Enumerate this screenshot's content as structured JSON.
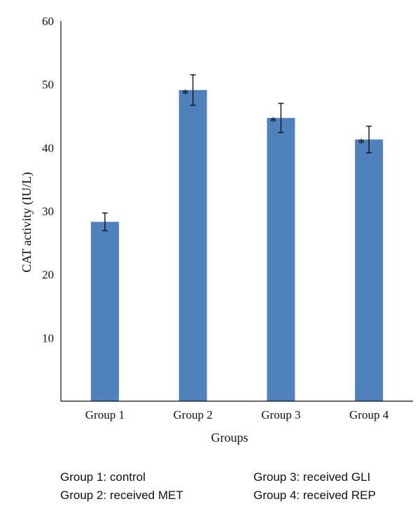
{
  "chart_data": {
    "type": "bar",
    "categories": [
      "Group 1",
      "Group 2",
      "Group 3",
      "Group 4"
    ],
    "values": [
      28.3,
      49.1,
      44.7,
      41.3
    ],
    "errors": [
      1.4,
      2.4,
      2.3,
      2.1
    ],
    "significance": [
      "",
      "*",
      "*",
      "*"
    ],
    "xlabel": "Groups",
    "ylabel": "CAT activity (IU/L)",
    "ylim": [
      0,
      60
    ],
    "yticks": [
      10,
      20,
      30,
      40,
      50,
      60
    ],
    "grid": false,
    "bar_color": "#4f81bd"
  },
  "legend": {
    "left": [
      "Group 1: control",
      "Group 2: received MET"
    ],
    "right": [
      "Group 3: received GLI",
      "Group 4: received REP"
    ]
  }
}
